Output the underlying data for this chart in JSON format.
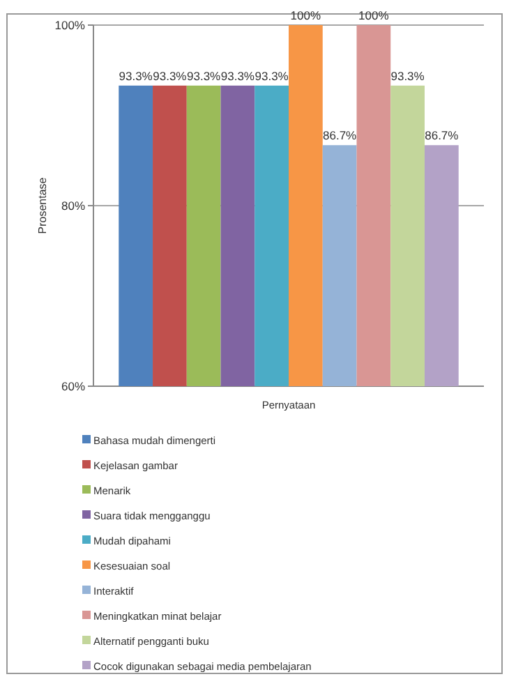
{
  "chart_data": {
    "type": "bar",
    "xlabel": "Pernyataan",
    "ylabel": "Prosentase",
    "categories": [
      null
    ],
    "ylim": [
      60,
      100
    ],
    "yticks": [
      {
        "value": 60,
        "label": "60%"
      },
      {
        "value": 80,
        "label": "80%"
      },
      {
        "value": 100,
        "label": "100%"
      }
    ],
    "grid": "y",
    "legend": "bottom",
    "series": [
      {
        "name": "Bahasa mudah dimengerti",
        "color": "#4f81bd",
        "values": [
          93.3
        ],
        "value_labels": [
          "93.3%"
        ]
      },
      {
        "name": "Kejelasan gambar",
        "color": "#c0504d",
        "values": [
          93.3
        ],
        "value_labels": [
          "93.3%"
        ]
      },
      {
        "name": "Menarik",
        "color": "#9bbb59",
        "values": [
          93.3
        ],
        "value_labels": [
          "93.3%"
        ]
      },
      {
        "name": "Suara tidak mengganggu",
        "color": "#8064a2",
        "values": [
          93.3
        ],
        "value_labels": [
          "93.3%"
        ]
      },
      {
        "name": "Mudah dipahami",
        "color": "#4bacc6",
        "values": [
          93.3
        ],
        "value_labels": [
          "93.3%"
        ]
      },
      {
        "name": "Kesesuaian soal",
        "color": "#f79646",
        "values": [
          100
        ],
        "value_labels": [
          "100%"
        ]
      },
      {
        "name": "Interaktif",
        "color": "#95b3d7",
        "values": [
          86.7
        ],
        "value_labels": [
          "86.7%"
        ]
      },
      {
        "name": "Meningkatkan minat belajar",
        "color": "#d99694",
        "values": [
          100
        ],
        "value_labels": [
          "100%"
        ]
      },
      {
        "name": "Alternatif pengganti buku",
        "color": "#c3d69b",
        "values": [
          93.3
        ],
        "value_labels": [
          "93.3%"
        ]
      },
      {
        "name": "Cocok digunakan sebagai media pembelajaran",
        "color": "#b3a2c7",
        "values": [
          86.7
        ],
        "value_labels": [
          "86.7%"
        ]
      }
    ]
  }
}
